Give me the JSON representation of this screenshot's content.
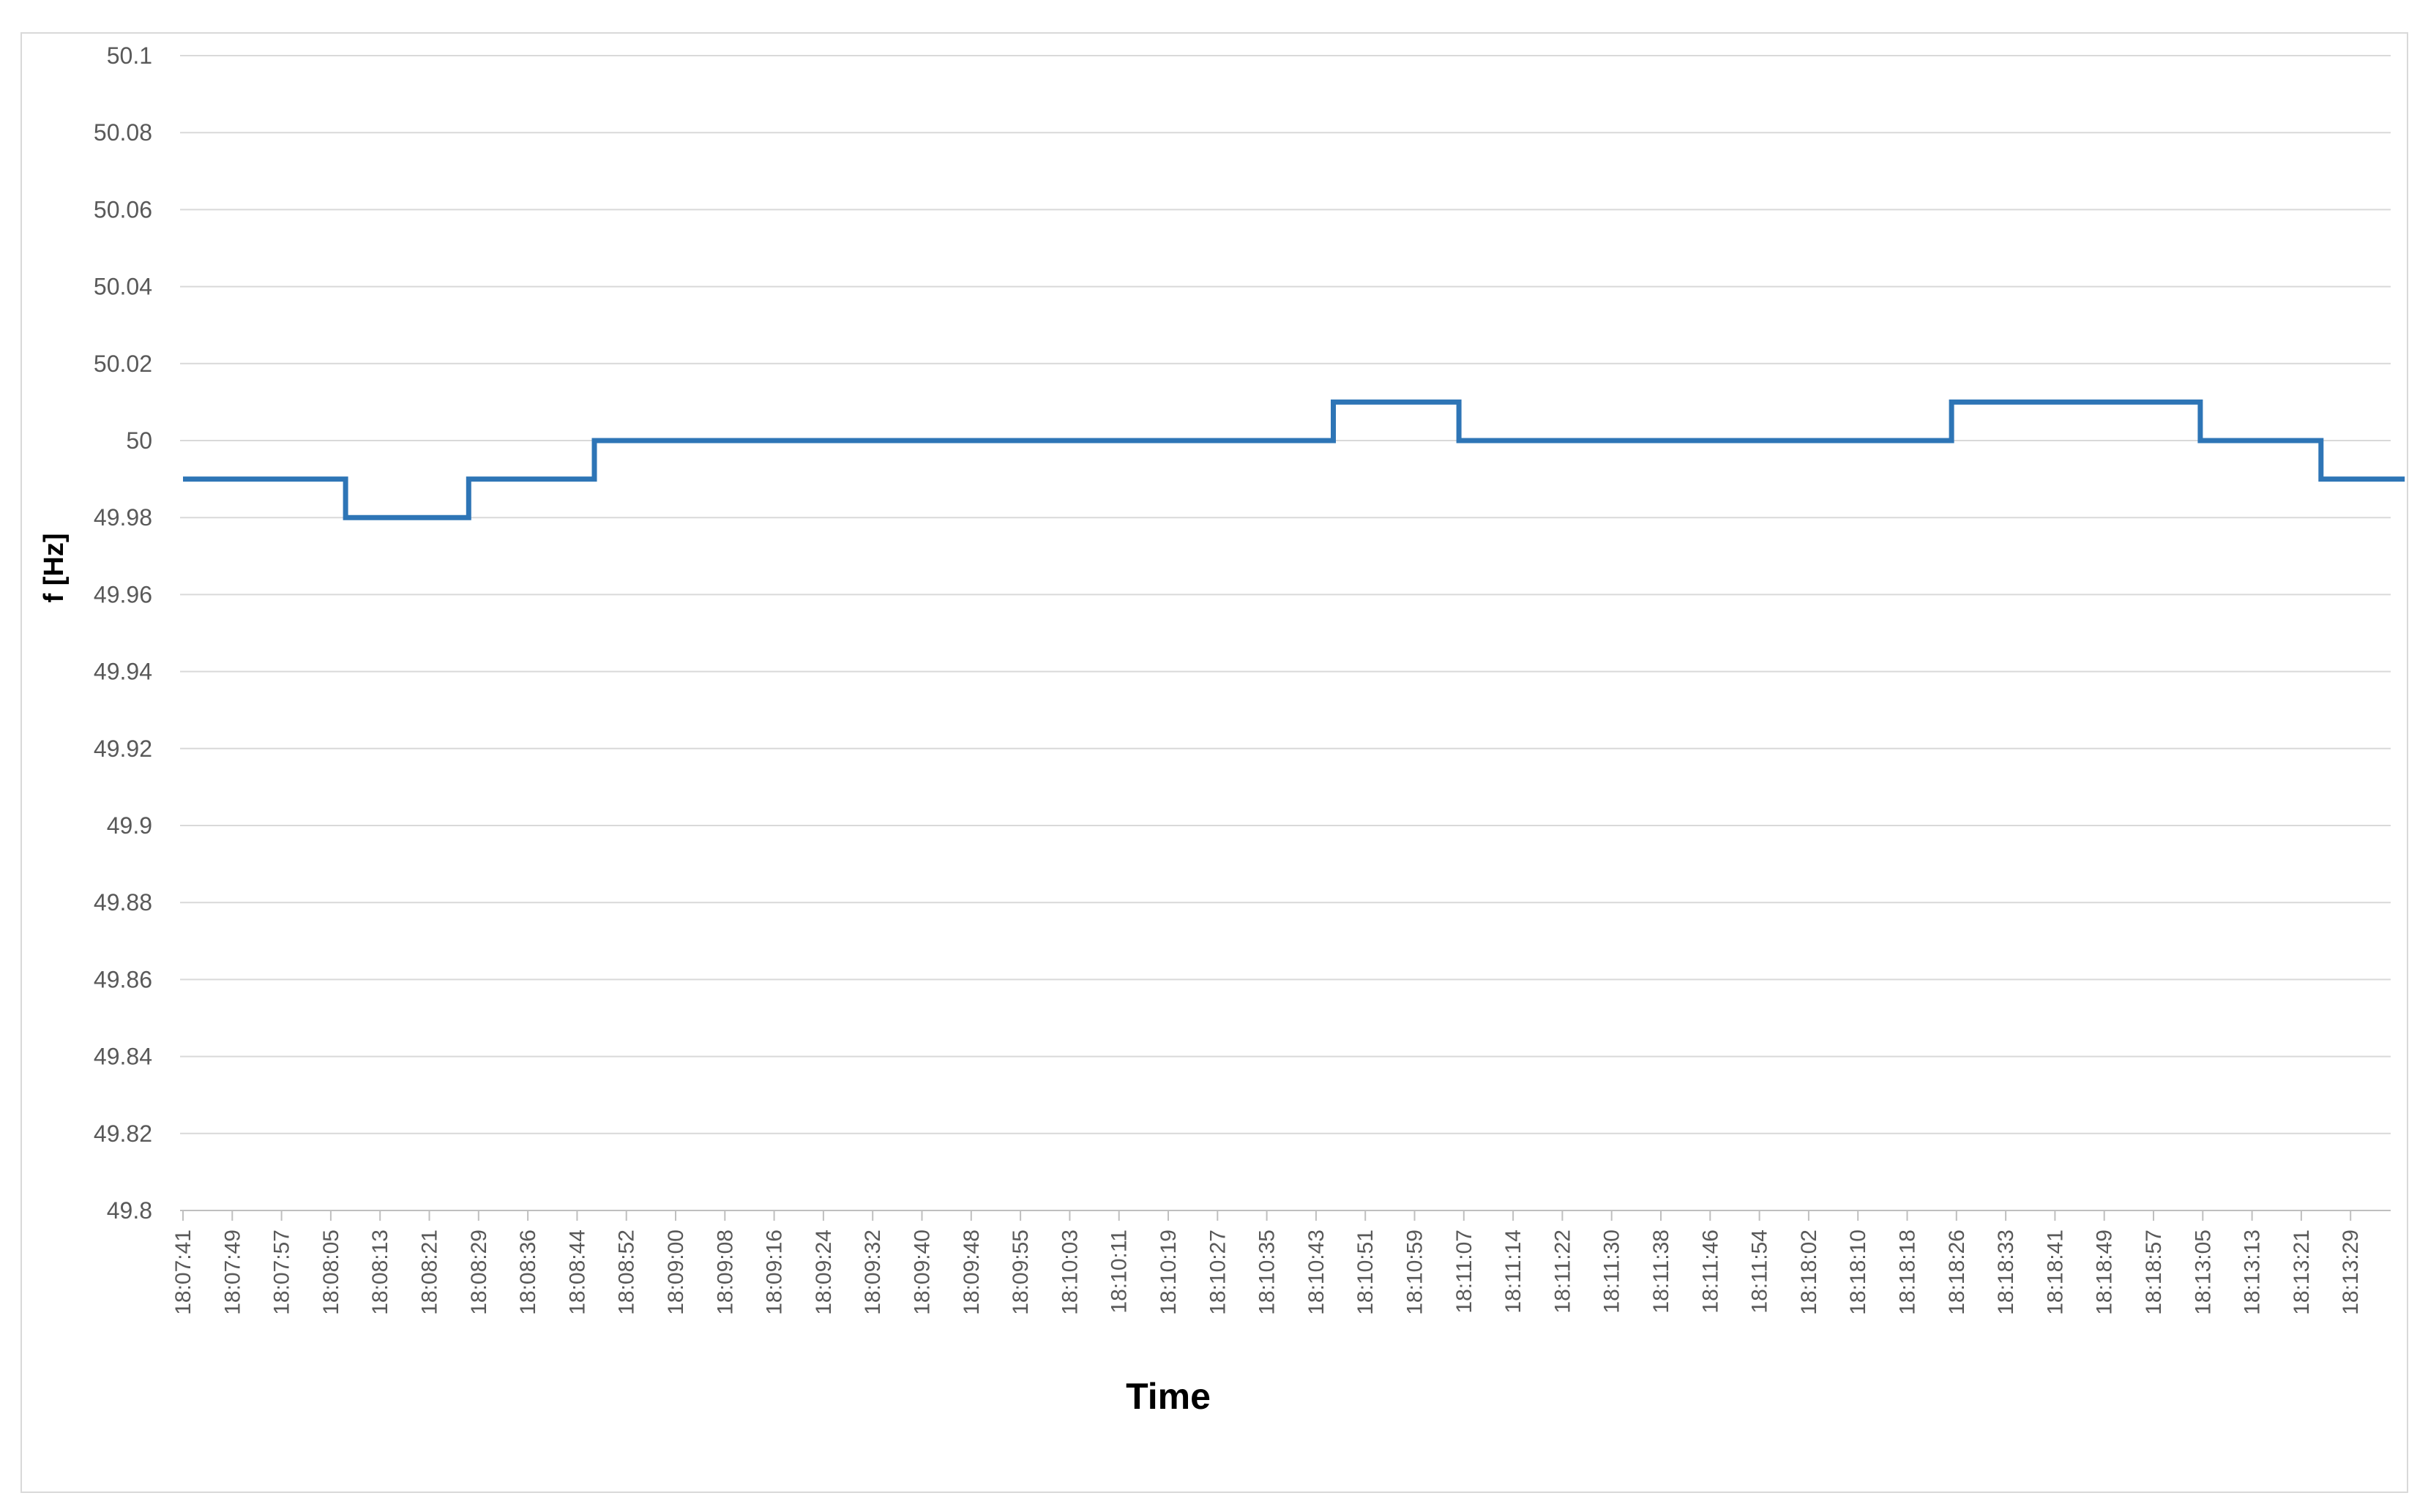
{
  "chart_data": {
    "type": "line",
    "title": "",
    "xlabel": "Time",
    "ylabel": "f [Hz]",
    "ylim": [
      49.8,
      50.1
    ],
    "y_ticks": [
      "50.1",
      "50.08",
      "50.06",
      "50.04",
      "50.02",
      "50",
      "49.98",
      "49.96",
      "49.94",
      "49.92",
      "49.9",
      "49.88",
      "49.86",
      "49.84",
      "49.82",
      "49.8"
    ],
    "x_tick_labels": [
      "18:07:41",
      "18:07:49",
      "18:07:57",
      "18:08:05",
      "18:08:13",
      "18:08:21",
      "18:08:29",
      "18:08:36",
      "18:08:44",
      "18:08:52",
      "18:09:00",
      "18:09:08",
      "18:09:16",
      "18:09:24",
      "18:09:32",
      "18:09:40",
      "18:09:48",
      "18:09:55",
      "18:10:03",
      "18:10:11",
      "18:10:19",
      "18:10:27",
      "18:10:35",
      "18:10:43",
      "18:10:51",
      "18:10:59",
      "18:11:07",
      "18:11:14",
      "18:11:22",
      "18:11:30",
      "18:11:38",
      "18:11:46",
      "18:11:54",
      "18:18:02",
      "18:18:10",
      "18:18:18",
      "18:18:26",
      "18:18:33",
      "18:18:41",
      "18:18:49",
      "18:18:57",
      "18:13:05",
      "18:13:13",
      "18:13:21",
      "18:13:29"
    ],
    "grid": true,
    "legend": "none",
    "series": [
      {
        "color": "#2e75b6",
        "points": [
          [
            0.0,
            49.99
          ],
          [
            3.3,
            49.99
          ],
          [
            3.3,
            49.98
          ],
          [
            5.8,
            49.98
          ],
          [
            5.8,
            49.99
          ],
          [
            8.35,
            49.99
          ],
          [
            8.35,
            50.0
          ],
          [
            23.35,
            50.0
          ],
          [
            23.35,
            50.01
          ],
          [
            25.9,
            50.01
          ],
          [
            25.9,
            50.0
          ],
          [
            35.9,
            50.0
          ],
          [
            35.9,
            50.01
          ],
          [
            40.95,
            50.01
          ],
          [
            40.95,
            50.0
          ],
          [
            43.4,
            50.0
          ],
          [
            43.4,
            49.99
          ],
          [
            45.1,
            49.99
          ]
        ]
      }
    ]
  }
}
